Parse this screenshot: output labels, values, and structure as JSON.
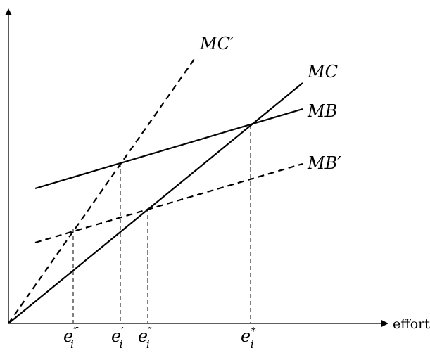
{
  "labels": {
    "mc_prime": "MC′",
    "mc": "MC",
    "mb": "MB",
    "mb_prime": "MB′",
    "x_axis": "effort"
  },
  "ticks": [
    {
      "base": "e",
      "sub": "i",
      "sup": "‴"
    },
    {
      "base": "e",
      "sub": "i",
      "sup": "′"
    },
    {
      "base": "e",
      "sub": "i",
      "sup": "″"
    },
    {
      "base": "e",
      "sub": "i",
      "sup": "*"
    }
  ],
  "line_styles": {
    "mc_prime": "dashed",
    "mc": "solid",
    "mb": "solid",
    "mb_prime": "dashed"
  }
}
